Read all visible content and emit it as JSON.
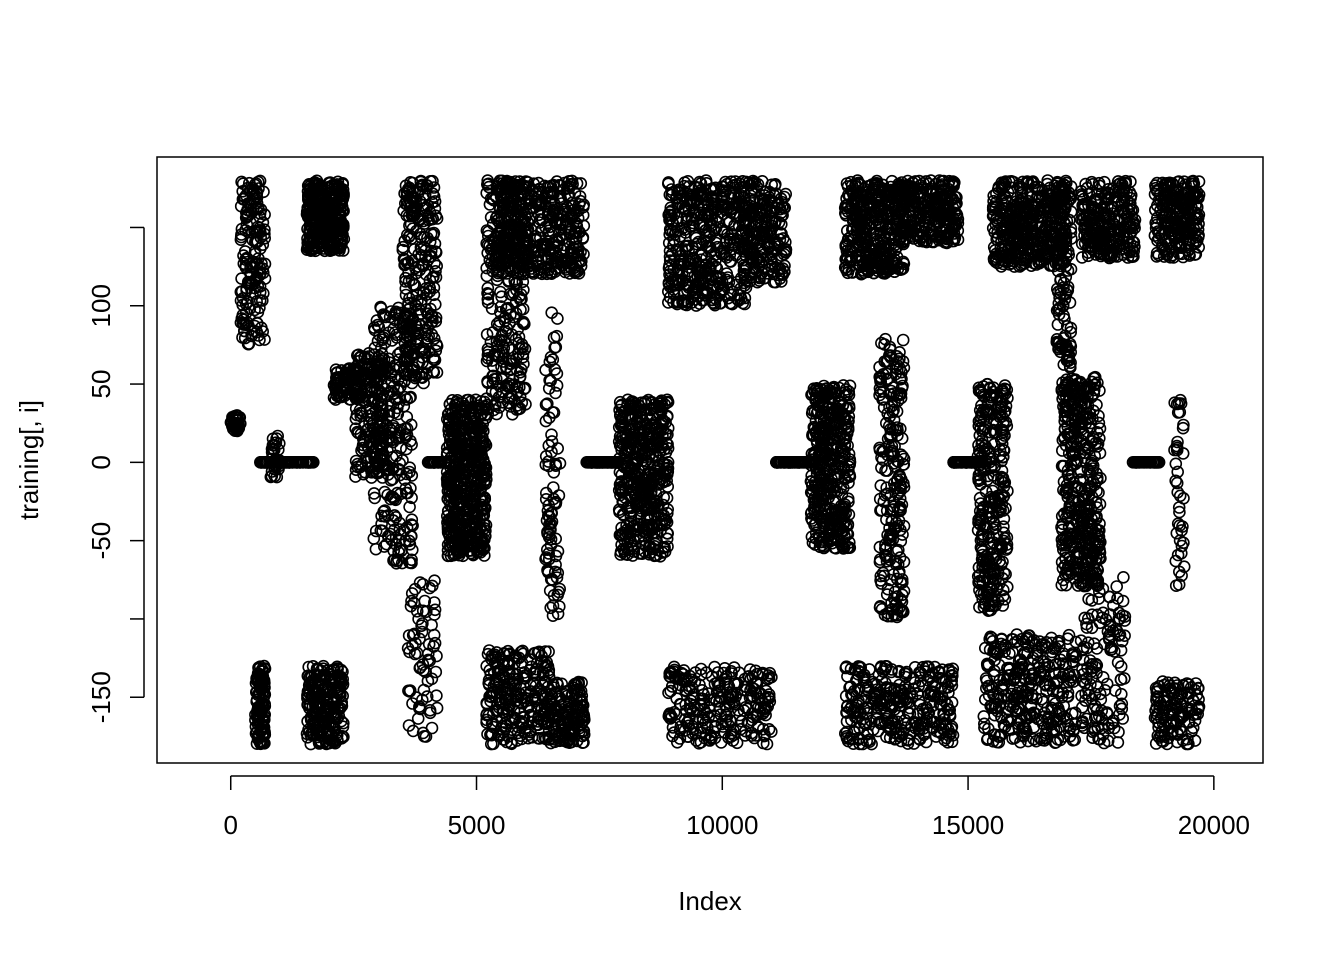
{
  "chart_data": {
    "type": "scatter",
    "title": "",
    "xlabel": "Index",
    "ylabel": "training[, i]",
    "xlim": [
      -1500,
      21000
    ],
    "ylim": [
      -192,
      195
    ],
    "x_ticks": [
      0,
      5000,
      10000,
      15000,
      20000
    ],
    "x_tick_labels": [
      "0",
      "5000",
      "10000",
      "15000",
      "20000"
    ],
    "y_ticks": [
      -150,
      -100,
      -50,
      0,
      50,
      100,
      150
    ],
    "y_tick_labels": [
      "-150",
      "",
      "-50",
      "0",
      "50",
      "100",
      ""
    ],
    "grid": false,
    "marker": "open-circle",
    "color": "#000000",
    "n_points_approx": 19622,
    "clusters": [
      {
        "x": [
          0,
          200
        ],
        "y": [
          20,
          30
        ],
        "n": 40
      },
      {
        "x": [
          200,
          700
        ],
        "y": [
          75,
          180
        ],
        "n": 160
      },
      {
        "x": [
          500,
          700
        ],
        "y": [
          -180,
          -130
        ],
        "n": 110
      },
      {
        "x": [
          600,
          1700
        ],
        "y": [
          0,
          0
        ],
        "n": 90
      },
      {
        "x": [
          800,
          1000
        ],
        "y": [
          -10,
          18
        ],
        "n": 30
      },
      {
        "x": [
          1550,
          2300
        ],
        "y": [
          135,
          180
        ],
        "n": 350
      },
      {
        "x": [
          1550,
          2300
        ],
        "y": [
          -180,
          -130
        ],
        "n": 220
      },
      {
        "x": [
          2100,
          2700
        ],
        "y": [
          40,
          60
        ],
        "n": 90
      },
      {
        "x": [
          2500,
          3100
        ],
        "y": [
          -10,
          70
        ],
        "n": 170
      },
      {
        "x": [
          2900,
          3700
        ],
        "y": [
          -65,
          100
        ],
        "n": 260
      },
      {
        "x": [
          3500,
          4200
        ],
        "y": [
          50,
          180
        ],
        "n": 260
      },
      {
        "x": [
          3600,
          4200
        ],
        "y": [
          -178,
          -75
        ],
        "n": 70
      },
      {
        "x": [
          4000,
          4400
        ],
        "y": [
          0,
          0
        ],
        "n": 40
      },
      {
        "x": [
          4400,
          5200
        ],
        "y": [
          -60,
          40
        ],
        "n": 520
      },
      {
        "x": [
          5200,
          6000
        ],
        "y": [
          30,
          180
        ],
        "n": 280
      },
      {
        "x": [
          5200,
          6500
        ],
        "y": [
          -180,
          -120
        ],
        "n": 260
      },
      {
        "x": [
          5400,
          7200
        ],
        "y": [
          120,
          180
        ],
        "n": 420
      },
      {
        "x": [
          6400,
          6700
        ],
        "y": [
          -100,
          100
        ],
        "n": 90
      },
      {
        "x": [
          6500,
          7200
        ],
        "y": [
          -180,
          -140
        ],
        "n": 150
      },
      {
        "x": [
          7200,
          7900
        ],
        "y": [
          0,
          0
        ],
        "n": 80
      },
      {
        "x": [
          7900,
          8900
        ],
        "y": [
          -60,
          40
        ],
        "n": 480
      },
      {
        "x": [
          8900,
          10500
        ],
        "y": [
          100,
          180
        ],
        "n": 440
      },
      {
        "x": [
          8900,
          11000
        ],
        "y": [
          -180,
          -130
        ],
        "n": 260
      },
      {
        "x": [
          10400,
          11300
        ],
        "y": [
          115,
          180
        ],
        "n": 220
      },
      {
        "x": [
          11100,
          11900
        ],
        "y": [
          0,
          0
        ],
        "n": 80
      },
      {
        "x": [
          11800,
          12600
        ],
        "y": [
          -55,
          50
        ],
        "n": 420
      },
      {
        "x": [
          12500,
          13700
        ],
        "y": [
          120,
          180
        ],
        "n": 380
      },
      {
        "x": [
          12500,
          14700
        ],
        "y": [
          -180,
          -130
        ],
        "n": 320
      },
      {
        "x": [
          13200,
          13700
        ],
        "y": [
          -100,
          80
        ],
        "n": 230
      },
      {
        "x": [
          13600,
          14800
        ],
        "y": [
          140,
          180
        ],
        "n": 280
      },
      {
        "x": [
          14700,
          15300
        ],
        "y": [
          0,
          0
        ],
        "n": 60
      },
      {
        "x": [
          15200,
          15800
        ],
        "y": [
          -95,
          50
        ],
        "n": 300
      },
      {
        "x": [
          15300,
          17200
        ],
        "y": [
          -180,
          -110
        ],
        "n": 330
      },
      {
        "x": [
          15500,
          17000
        ],
        "y": [
          125,
          180
        ],
        "n": 420
      },
      {
        "x": [
          16800,
          17100
        ],
        "y": [
          60,
          180
        ],
        "n": 120
      },
      {
        "x": [
          16900,
          17700
        ],
        "y": [
          -80,
          55
        ],
        "n": 420
      },
      {
        "x": [
          17300,
          18200
        ],
        "y": [
          -180,
          -70
        ],
        "n": 140
      },
      {
        "x": [
          17300,
          18400
        ],
        "y": [
          130,
          180
        ],
        "n": 260
      },
      {
        "x": [
          18300,
          18900
        ],
        "y": [
          0,
          0
        ],
        "n": 40
      },
      {
        "x": [
          18800,
          19700
        ],
        "y": [
          130,
          180
        ],
        "n": 240
      },
      {
        "x": [
          18800,
          19700
        ],
        "y": [
          -180,
          -140
        ],
        "n": 130
      },
      {
        "x": [
          19200,
          19400
        ],
        "y": [
          -80,
          40
        ],
        "n": 40
      }
    ]
  }
}
